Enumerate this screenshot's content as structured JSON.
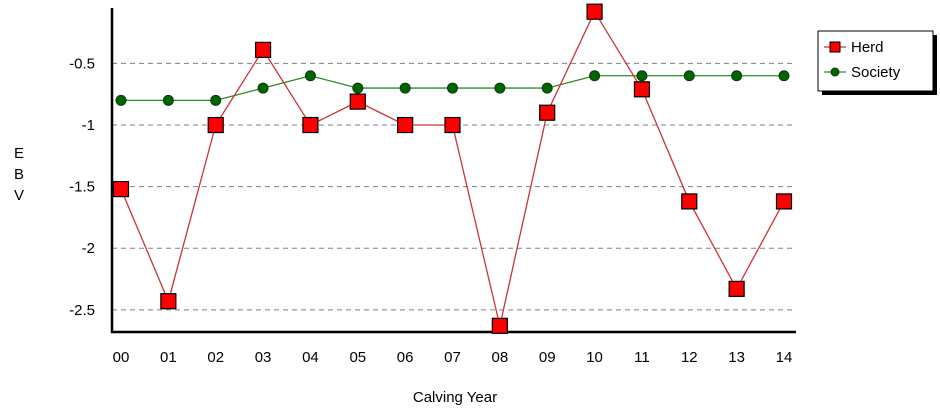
{
  "chart_data": {
    "type": "line",
    "categories": [
      "00",
      "01",
      "02",
      "03",
      "04",
      "05",
      "06",
      "07",
      "08",
      "09",
      "10",
      "11",
      "12",
      "13",
      "14"
    ],
    "series": [
      {
        "name": "Herd",
        "color": "#ff0000",
        "line_color": "#cc3333",
        "marker": "square",
        "values": [
          -1.52,
          -2.43,
          -1.0,
          -0.39,
          -1.0,
          -0.81,
          -1.0,
          -1.0,
          -2.63,
          -0.9,
          -0.08,
          -0.71,
          -1.62,
          -2.33,
          -1.62
        ]
      },
      {
        "name": "Society",
        "color": "#006400",
        "line_color": "#2e8b2e",
        "marker": "circle",
        "values": [
          -0.8,
          -0.8,
          -0.8,
          -0.7,
          -0.6,
          -0.7,
          -0.7,
          -0.7,
          -0.7,
          -0.7,
          -0.6,
          -0.6,
          -0.6,
          -0.6,
          -0.6
        ]
      }
    ],
    "xlabel": "Calving Year",
    "ylabel": "EBV",
    "yticks": [
      -0.5,
      -1,
      -1.5,
      -2,
      -2.5
    ],
    "ytick_labels": [
      "-0.5",
      "-1",
      "-1.5",
      "-2",
      "-2.5"
    ],
    "ylim": [
      -2.68,
      -0.05
    ],
    "grid": "horizontal dashed",
    "legend_position": "top-right"
  }
}
